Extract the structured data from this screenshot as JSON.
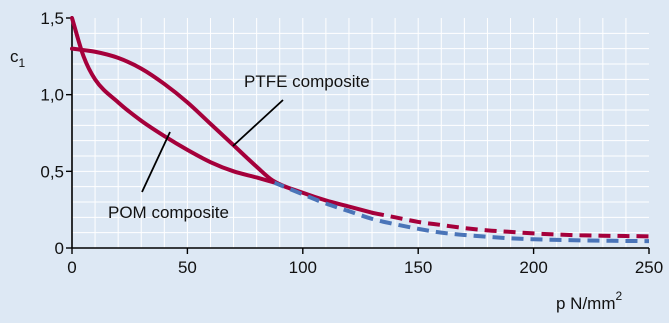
{
  "chart_data": {
    "type": "line",
    "title": "",
    "ylabel": "c",
    "ylabel_sub": "1",
    "xlabel": "p N/mm",
    "xlabel_sup": "2",
    "xlim": [
      0,
      250
    ],
    "ylim": [
      0,
      1.5
    ],
    "xticks": [
      0,
      50,
      100,
      150,
      200,
      250
    ],
    "xtick_labels": [
      "0",
      "50",
      "100",
      "150",
      "200",
      "250"
    ],
    "yticks": [
      0,
      0.5,
      1.0,
      1.5
    ],
    "ytick_labels": [
      "0",
      "0,5",
      "1,0",
      "1,5"
    ],
    "grid": true,
    "series": [
      {
        "name": "PTFE composite",
        "color": "#a5003b",
        "solid_until": 130,
        "dash_color": "#a5003b",
        "x": [
          0,
          10,
          20,
          30,
          40,
          50,
          60,
          70,
          80,
          87,
          100,
          110,
          120,
          130,
          140,
          150,
          160,
          170,
          180,
          190,
          200,
          210,
          220,
          230,
          240,
          250
        ],
        "y": [
          1.3,
          1.28,
          1.24,
          1.17,
          1.07,
          0.95,
          0.81,
          0.67,
          0.53,
          0.44,
          0.36,
          0.31,
          0.27,
          0.23,
          0.2,
          0.17,
          0.15,
          0.13,
          0.115,
          0.105,
          0.095,
          0.088,
          0.083,
          0.08,
          0.078,
          0.076
        ]
      },
      {
        "name": "POM composite",
        "color": "#a5003b",
        "solid_until": 87,
        "dash_color": "#4a74b8",
        "x": [
          0,
          5,
          10,
          20,
          30,
          40,
          50,
          60,
          70,
          80,
          87,
          100,
          110,
          120,
          130,
          140,
          150,
          160,
          170,
          180,
          190,
          200,
          210,
          220,
          230,
          240,
          250
        ],
        "y": [
          1.5,
          1.25,
          1.1,
          0.95,
          0.83,
          0.73,
          0.64,
          0.56,
          0.5,
          0.46,
          0.43,
          0.35,
          0.29,
          0.24,
          0.19,
          0.155,
          0.125,
          0.1,
          0.085,
          0.073,
          0.063,
          0.057,
          0.053,
          0.05,
          0.048,
          0.046,
          0.045
        ]
      }
    ],
    "annotations": [
      {
        "text": "PTFE composite",
        "series": 0
      },
      {
        "text": "POM composite",
        "series": 1
      }
    ]
  }
}
